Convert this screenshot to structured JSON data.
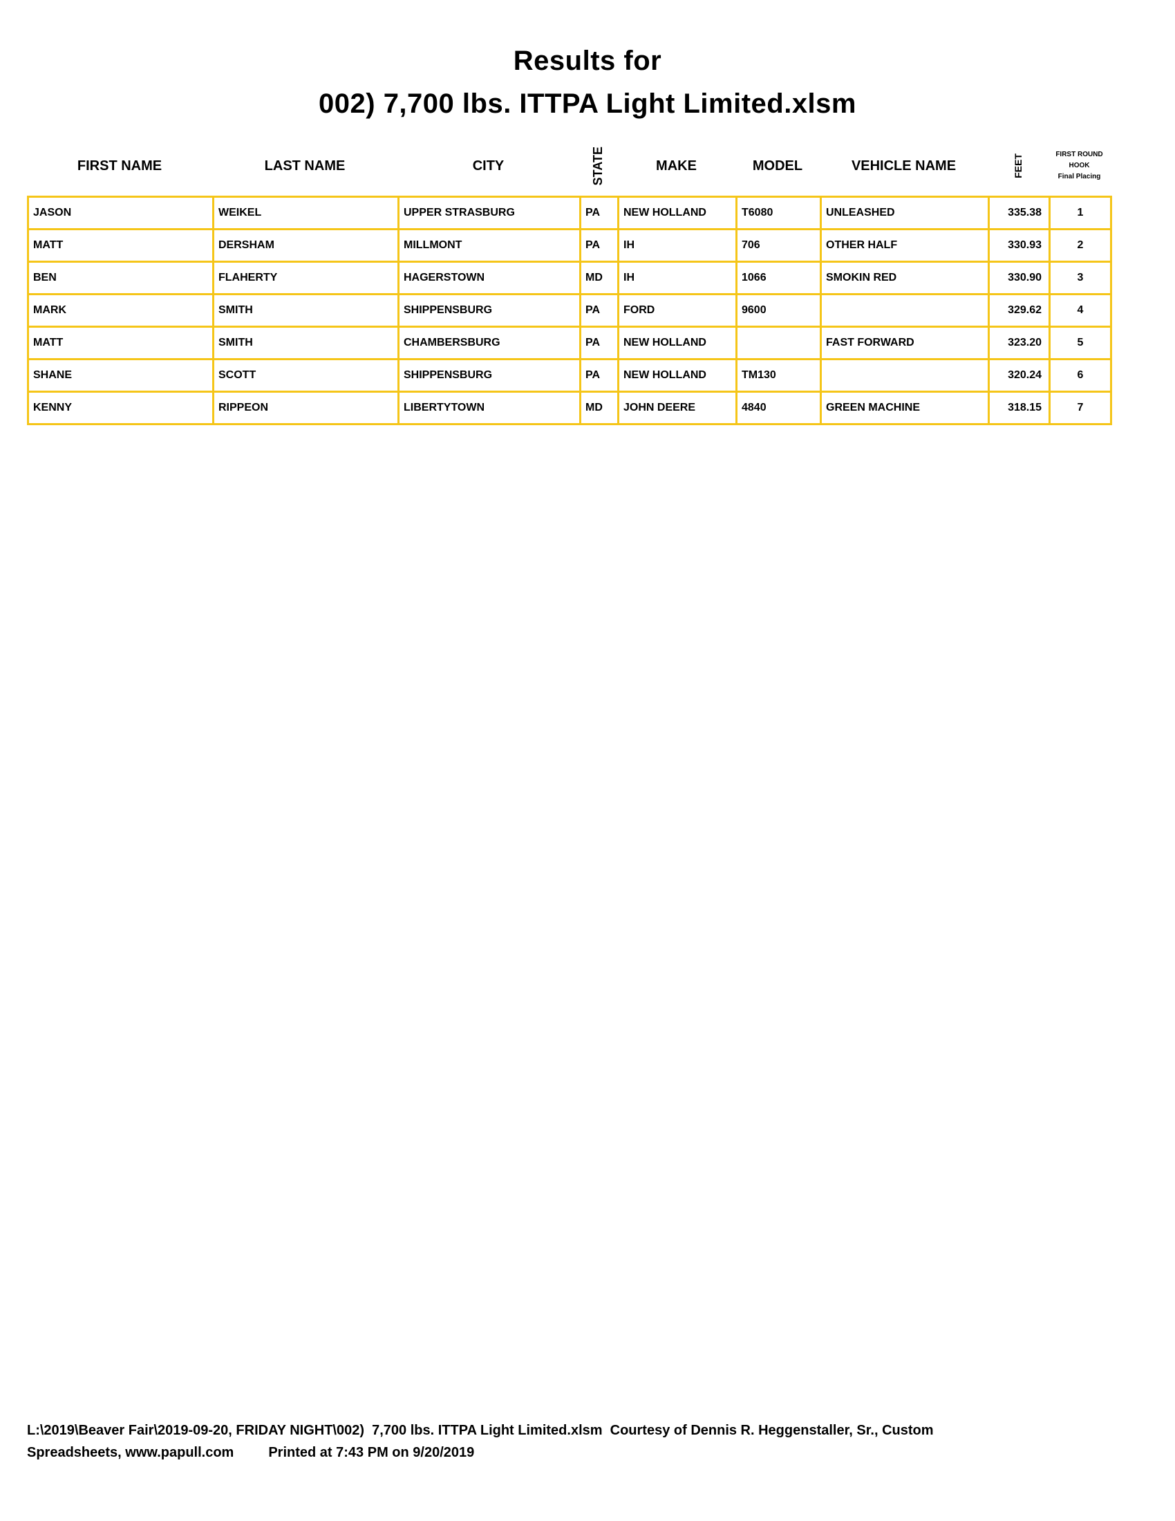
{
  "title_line1": "Results for",
  "title_line2": "002)  7,700 lbs. ITTPA Light Limited.xlsm",
  "columns": {
    "first_name": "FIRST NAME",
    "last_name": "LAST NAME",
    "city": "CITY",
    "state": "STATE",
    "make": "MAKE",
    "model": "MODEL",
    "vehicle_name": "VEHICLE NAME",
    "feet": "FEET",
    "placing_line1": "FIRST ROUND",
    "placing_line2": "HOOK",
    "placing_line3": "Final Placing"
  },
  "rows": [
    [
      "JASON",
      "WEIKEL",
      "UPPER STRASBURG",
      "PA",
      "NEW HOLLAND",
      "T6080",
      "UNLEASHED",
      "335.38",
      "1"
    ],
    [
      "MATT",
      "DERSHAM",
      "MILLMONT",
      "PA",
      "IH",
      "706",
      "OTHER HALF",
      "330.93",
      "2"
    ],
    [
      "BEN",
      "FLAHERTY",
      "HAGERSTOWN",
      "MD",
      "IH",
      "1066",
      "SMOKIN RED",
      "330.90",
      "3"
    ],
    [
      "MARK",
      "SMITH",
      "SHIPPENSBURG",
      "PA",
      "FORD",
      "9600",
      "",
      "329.62",
      "4"
    ],
    [
      "MATT",
      "SMITH",
      "CHAMBERSBURG",
      "PA",
      "NEW HOLLAND",
      "",
      "FAST FORWARD",
      "323.20",
      "5"
    ],
    [
      "SHANE",
      "SCOTT",
      "SHIPPENSBURG",
      "PA",
      "NEW HOLLAND",
      "TM130",
      "",
      "320.24",
      "6"
    ],
    [
      "KENNY",
      "RIPPEON",
      "LIBERTYTOWN",
      "MD",
      "JOHN DEERE",
      "4840",
      "GREEN MACHINE",
      "318.15",
      "7"
    ]
  ],
  "border_color": "#f5c518",
  "footer_line1": "L:\\2019\\Beaver Fair\\2019-09-20, FRIDAY NIGHT\\002)  7,700 lbs. ITTPA Light Limited.xlsm  Courtesy of Dennis R. Heggenstaller, Sr., Custom",
  "footer_line2": "Spreadsheets, www.papull.com         Printed at 7:43 PM on 9/20/2019"
}
